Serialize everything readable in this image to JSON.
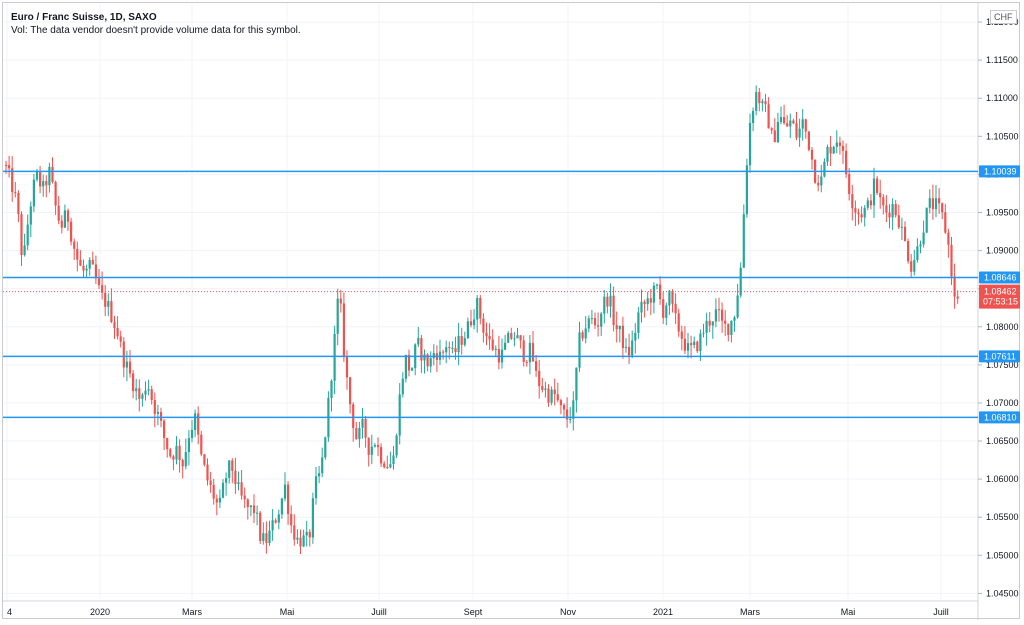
{
  "header": {
    "title": "Euro / Franc Suisse, 1D, SAXO",
    "volume_note": "Vol: The data vendor doesn't provide volume data for this symbol."
  },
  "currency_label": "CHF",
  "colors": {
    "up": "#26a69a",
    "down": "#ef5350",
    "level_line": "#2196f3",
    "current_price": "#ef5350",
    "grid": "#f0f3fa",
    "axis_text": "#131722"
  },
  "chart_data": {
    "type": "candlestick",
    "symbol": "EUR/CHF",
    "timeframe": "1D",
    "source": "SAXO",
    "ylim": [
      1.044,
      1.1225
    ],
    "y_ticks": [
      "1.12000",
      "1.11500",
      "1.11000",
      "1.10500",
      "1.10000",
      "1.09500",
      "1.09000",
      "1.08500",
      "1.08000",
      "1.07500",
      "1.07000",
      "1.06500",
      "1.06000",
      "1.05500",
      "1.05000",
      "1.04500"
    ],
    "x_ticks": [
      "4",
      "2020",
      "Mars",
      "Mai",
      "Juill",
      "Sept",
      "Nov",
      "2021",
      "Mars",
      "Mai",
      "Juill"
    ],
    "horizontal_levels": [
      "1.10039",
      "1.08646",
      "1.07611",
      "1.06810"
    ],
    "current_price": "1.08462",
    "countdown": "07:53:15",
    "grid": true,
    "path": [
      [
        0,
        1.102
      ],
      [
        8,
        1.099
      ],
      [
        14,
        1.096
      ],
      [
        20,
        1.088
      ],
      [
        26,
        1.095
      ],
      [
        33,
        1.1
      ],
      [
        40,
        1.098
      ],
      [
        47,
        1.1005
      ],
      [
        52,
        1.096
      ],
      [
        58,
        1.093
      ],
      [
        64,
        1.095
      ],
      [
        70,
        1.091
      ],
      [
        76,
        1.088
      ],
      [
        82,
        1.087
      ],
      [
        88,
        1.088
      ],
      [
        93,
        1.086
      ],
      [
        98,
        1.084
      ],
      [
        104,
        1.083
      ],
      [
        110,
        1.081
      ],
      [
        115,
        1.079
      ],
      [
        120,
        1.076
      ],
      [
        126,
        1.074
      ],
      [
        132,
        1.072
      ],
      [
        138,
        1.07
      ],
      [
        144,
        1.073
      ],
      [
        150,
        1.07
      ],
      [
        156,
        1.068
      ],
      [
        162,
        1.065
      ],
      [
        168,
        1.063
      ],
      [
        174,
        1.064
      ],
      [
        180,
        1.062
      ],
      [
        186,
        1.066
      ],
      [
        192,
        1.068
      ],
      [
        198,
        1.063
      ],
      [
        204,
        1.06
      ],
      [
        210,
        1.058
      ],
      [
        216,
        1.056
      ],
      [
        222,
        1.06
      ],
      [
        228,
        1.062
      ],
      [
        234,
        1.059
      ],
      [
        240,
        1.057
      ],
      [
        246,
        1.056
      ],
      [
        252,
        1.056
      ],
      [
        258,
        1.052
      ],
      [
        264,
        1.052
      ],
      [
        270,
        1.054
      ],
      [
        276,
        1.056
      ],
      [
        282,
        1.059
      ],
      [
        288,
        1.054
      ],
      [
        294,
        1.052
      ],
      [
        300,
        1.052
      ],
      [
        306,
        1.052
      ],
      [
        312,
        1.059
      ],
      [
        318,
        1.061
      ],
      [
        324,
        1.068
      ],
      [
        330,
        1.076
      ],
      [
        336,
        1.085
      ],
      [
        342,
        1.075
      ],
      [
        348,
        1.069
      ],
      [
        354,
        1.065
      ],
      [
        360,
        1.067
      ],
      [
        366,
        1.064
      ],
      [
        372,
        1.065
      ],
      [
        378,
        1.063
      ],
      [
        384,
        1.062
      ],
      [
        390,
        1.062
      ],
      [
        396,
        1.07
      ],
      [
        402,
        1.076
      ],
      [
        408,
        1.074
      ],
      [
        414,
        1.078
      ],
      [
        420,
        1.076
      ],
      [
        426,
        1.075
      ],
      [
        432,
        1.077
      ],
      [
        438,
        1.076
      ],
      [
        444,
        1.078
      ],
      [
        450,
        1.076
      ],
      [
        456,
        1.078
      ],
      [
        462,
        1.079
      ],
      [
        468,
        1.081
      ],
      [
        474,
        1.083
      ],
      [
        480,
        1.08
      ],
      [
        486,
        1.078
      ],
      [
        492,
        1.077
      ],
      [
        498,
        1.076
      ],
      [
        504,
        1.078
      ],
      [
        510,
        1.079
      ],
      [
        516,
        1.078
      ],
      [
        522,
        1.076
      ],
      [
        528,
        1.077
      ],
      [
        534,
        1.073
      ],
      [
        540,
        1.072
      ],
      [
        546,
        1.071
      ],
      [
        552,
        1.071
      ],
      [
        558,
        1.069
      ],
      [
        564,
        1.068
      ],
      [
        570,
        1.069
      ],
      [
        576,
        1.078
      ],
      [
        582,
        1.08
      ],
      [
        588,
        1.081
      ],
      [
        594,
        1.08
      ],
      [
        600,
        1.083
      ],
      [
        606,
        1.084
      ],
      [
        612,
        1.08
      ],
      [
        618,
        1.079
      ],
      [
        624,
        1.076
      ],
      [
        630,
        1.078
      ],
      [
        636,
        1.082
      ],
      [
        642,
        1.083
      ],
      [
        648,
        1.084
      ],
      [
        654,
        1.085
      ],
      [
        660,
        1.082
      ],
      [
        666,
        1.084
      ],
      [
        672,
        1.081
      ],
      [
        678,
        1.079
      ],
      [
        684,
        1.077
      ],
      [
        690,
        1.077
      ],
      [
        696,
        1.078
      ],
      [
        702,
        1.08
      ],
      [
        708,
        1.081
      ],
      [
        714,
        1.082
      ],
      [
        720,
        1.08
      ],
      [
        726,
        1.08
      ],
      [
        732,
        1.082
      ],
      [
        738,
        1.088
      ],
      [
        742,
        1.098
      ],
      [
        746,
        1.106
      ],
      [
        750,
        1.109
      ],
      [
        754,
        1.111
      ],
      [
        758,
        1.109
      ],
      [
        764,
        1.108
      ],
      [
        770,
        1.104
      ],
      [
        776,
        1.108
      ],
      [
        782,
        1.106
      ],
      [
        788,
        1.107
      ],
      [
        794,
        1.105
      ],
      [
        800,
        1.107
      ],
      [
        806,
        1.104
      ],
      [
        812,
        1.1
      ],
      [
        818,
        1.099
      ],
      [
        824,
        1.103
      ],
      [
        830,
        1.104
      ],
      [
        836,
        1.105
      ],
      [
        842,
        1.101
      ],
      [
        848,
        1.097
      ],
      [
        854,
        1.095
      ],
      [
        860,
        1.095
      ],
      [
        866,
        1.096
      ],
      [
        872,
        1.099
      ],
      [
        878,
        1.096
      ],
      [
        884,
        1.095
      ],
      [
        890,
        1.096
      ],
      [
        896,
        1.094
      ],
      [
        902,
        1.091
      ],
      [
        908,
        1.088
      ],
      [
        914,
        1.09
      ],
      [
        920,
        1.093
      ],
      [
        926,
        1.096
      ],
      [
        932,
        1.096
      ],
      [
        938,
        1.095
      ],
      [
        944,
        1.092
      ],
      [
        948,
        1.088
      ],
      [
        952,
        1.083
      ],
      [
        956,
        1.0846
      ]
    ]
  }
}
